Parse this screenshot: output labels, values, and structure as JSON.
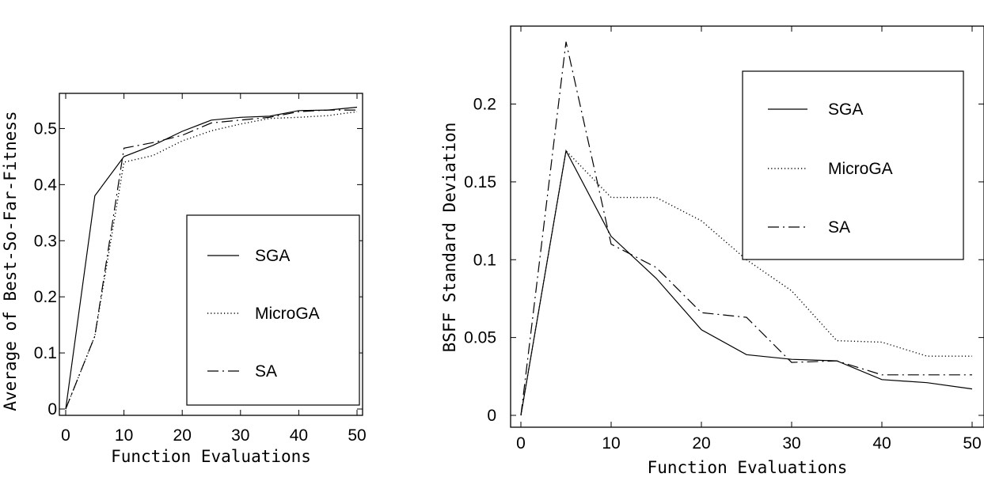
{
  "chart_data": [
    {
      "type": "line",
      "title": "",
      "xlabel": "Function Evaluations",
      "ylabel": "Average of Best-So-Far-Fitness",
      "xlim": [
        0,
        50
      ],
      "ylim": [
        0,
        0.55
      ],
      "x_ticks": [
        "0",
        "10",
        "20",
        "30",
        "40",
        "50"
      ],
      "y_ticks": [
        "0",
        "0.1",
        "0.2",
        "0.3",
        "0.4",
        "0.5"
      ],
      "legend_position": "lower-right",
      "grid": false,
      "x": [
        0,
        5,
        10,
        15,
        20,
        25,
        30,
        35,
        40,
        45,
        50
      ],
      "series": [
        {
          "name": "SGA",
          "style": "solid",
          "values": [
            0,
            0.38,
            0.45,
            0.47,
            0.495,
            0.515,
            0.52,
            0.522,
            0.532,
            0.533,
            0.538
          ]
        },
        {
          "name": "MicroGA",
          "style": "dotted",
          "values": [
            0,
            0.13,
            0.44,
            0.452,
            0.478,
            0.496,
            0.508,
            0.518,
            0.52,
            0.523,
            0.53
          ]
        },
        {
          "name": "SA",
          "style": "dashdot",
          "values": [
            0,
            0.13,
            0.465,
            0.475,
            0.488,
            0.51,
            0.515,
            0.52,
            0.53,
            0.533,
            0.533
          ]
        }
      ]
    },
    {
      "type": "line",
      "title": "",
      "xlabel": "Function Evaluations",
      "ylabel": "BSFF Standard Deviation",
      "xlim": [
        0,
        50
      ],
      "ylim": [
        0,
        0.245
      ],
      "x_ticks": [
        "0",
        "10",
        "20",
        "30",
        "40",
        "50"
      ],
      "y_ticks": [
        "0",
        "0.05",
        "0.1",
        "0.15",
        "0.2"
      ],
      "legend_position": "top-right",
      "grid": false,
      "x": [
        0,
        5,
        10,
        15,
        20,
        25,
        30,
        35,
        40,
        45,
        50
      ],
      "series": [
        {
          "name": "SGA",
          "style": "solid",
          "values": [
            0,
            0.17,
            0.115,
            0.088,
            0.055,
            0.039,
            0.036,
            0.035,
            0.023,
            0.021,
            0.017
          ]
        },
        {
          "name": "MicroGA",
          "style": "dotted",
          "values": [
            0,
            0.17,
            0.14,
            0.14,
            0.125,
            0.1,
            0.08,
            0.048,
            0.047,
            0.038,
            0.038
          ]
        },
        {
          "name": "SA",
          "style": "dashdot",
          "values": [
            0,
            0.24,
            0.11,
            0.095,
            0.066,
            0.063,
            0.034,
            0.035,
            0.026,
            0.026,
            0.026
          ]
        }
      ]
    }
  ]
}
